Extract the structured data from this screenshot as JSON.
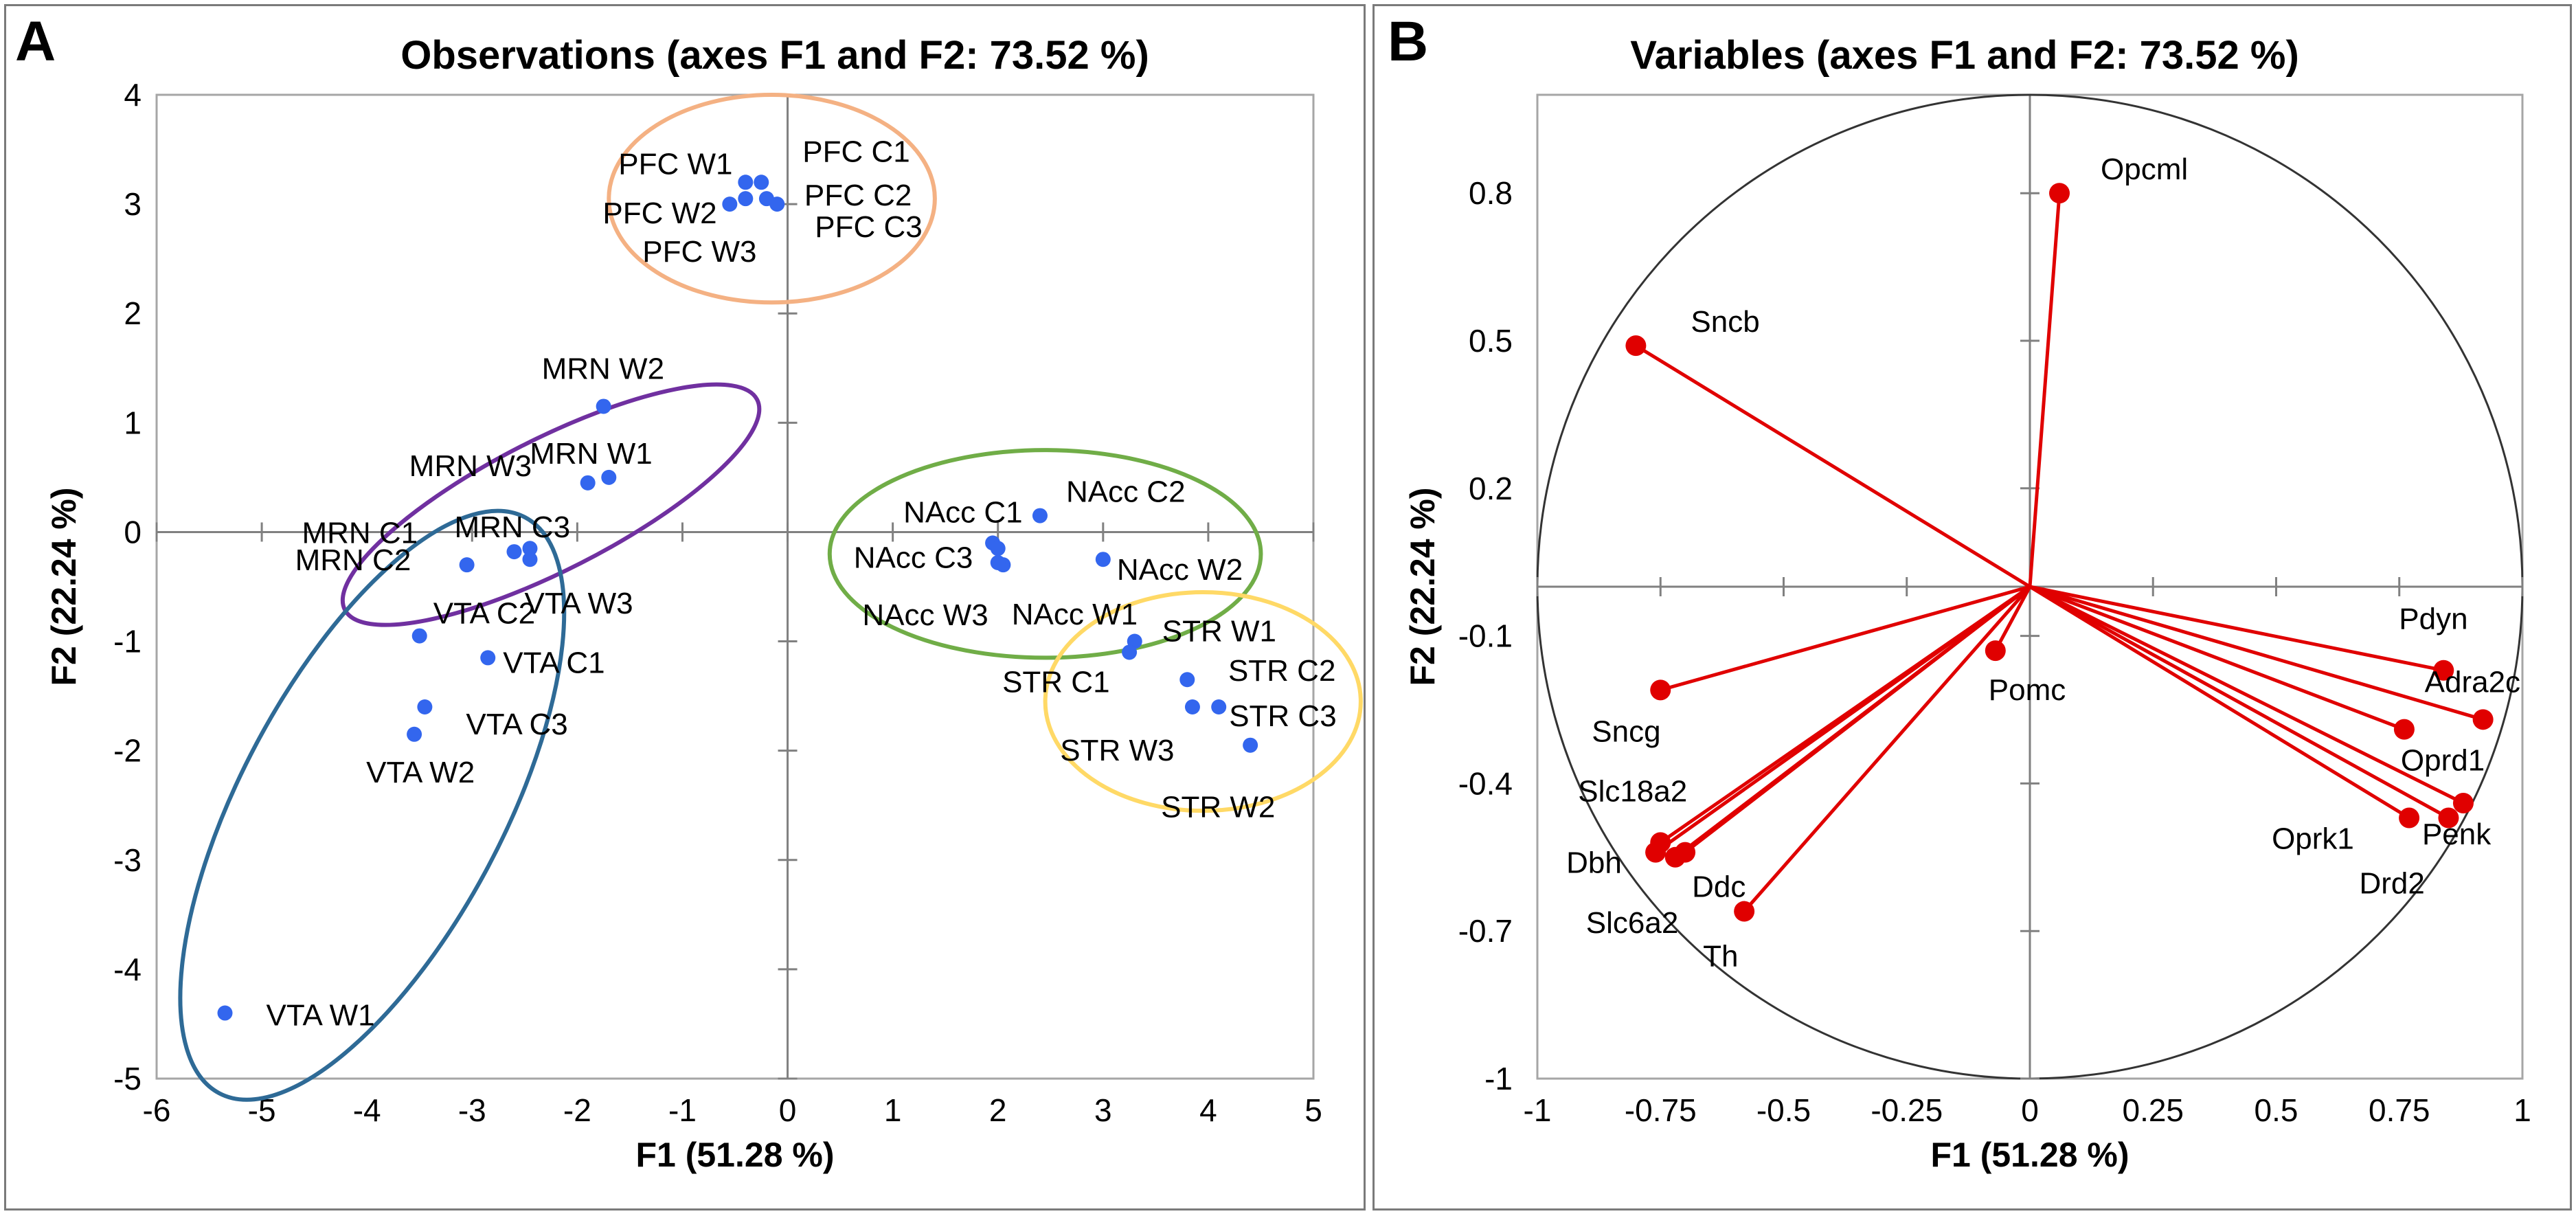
{
  "panels": [
    {
      "letter": "A",
      "title": "Observations (axes F1 and F2: 73.52 %)",
      "xlabel": "F1 (51.28 %)",
      "ylabel": "F2 (22.24 %)"
    },
    {
      "letter": "B",
      "title": "Variables (axes F1 and F2: 73.52 %)",
      "xlabel": "F1 (51.28 %)",
      "ylabel": "F2 (22.24 %)"
    }
  ],
  "chart_data": [
    {
      "type": "scatter",
      "title": "Observations (axes F1 and F2: 73.52 %)",
      "xlabel": "F1 (51.28 %)",
      "ylabel": "F2 (22.24 %)",
      "xlim": [
        -6,
        5
      ],
      "ylim": [
        -5,
        4
      ],
      "xticks": [
        "-6",
        "-5",
        "-4",
        "-3",
        "-2",
        "-1",
        "0",
        "1",
        "2",
        "3",
        "4",
        "5"
      ],
      "yticks": [
        "-5",
        "-4",
        "-3",
        "-2",
        "-1",
        "0",
        "1",
        "2",
        "3",
        "4"
      ],
      "point_color": "#3366ee",
      "points": [
        {
          "label": "PFC W1",
          "x": -0.4,
          "y": 3.2
        },
        {
          "label": "PFC W2",
          "x": -0.55,
          "y": 3.0
        },
        {
          "label": "PFC W3",
          "x": -0.4,
          "y": 3.05
        },
        {
          "label": "PFC C1",
          "x": -0.25,
          "y": 3.2
        },
        {
          "label": "PFC C2",
          "x": -0.2,
          "y": 3.05
        },
        {
          "label": "PFC C3",
          "x": -0.1,
          "y": 3.0
        },
        {
          "label": "MRN W2",
          "x": -1.75,
          "y": 1.15
        },
        {
          "label": "MRN W1",
          "x": -1.7,
          "y": 0.5
        },
        {
          "label": "MRN W3",
          "x": -1.9,
          "y": 0.45
        },
        {
          "label": "MRN C1",
          "x": -2.45,
          "y": -0.15
        },
        {
          "label": "MRN C3",
          "x": -2.45,
          "y": -0.25
        },
        {
          "label": "MRN C2",
          "x": -3.05,
          "y": -0.3
        },
        {
          "label": "VTA W3",
          "x": -2.6,
          "y": -0.18
        },
        {
          "label": "VTA C2",
          "x": -3.5,
          "y": -0.95
        },
        {
          "label": "VTA C1",
          "x": -2.85,
          "y": -1.15
        },
        {
          "label": "VTA C3",
          "x": -3.45,
          "y": -1.6
        },
        {
          "label": "VTA W2",
          "x": -3.55,
          "y": -1.85
        },
        {
          "label": "VTA W1",
          "x": -5.35,
          "y": -4.4
        },
        {
          "label": "NAcc C1",
          "x": 1.95,
          "y": -0.1
        },
        {
          "label": "NAcc C3",
          "x": 2.0,
          "y": -0.15
        },
        {
          "label": "NAcc W3",
          "x": 2.05,
          "y": -0.3
        },
        {
          "label": "NAcc C2",
          "x": 2.4,
          "y": 0.15
        },
        {
          "label": "NAcc W2",
          "x": 3.0,
          "y": -0.25
        },
        {
          "label": "NAcc W1",
          "x": 2.0,
          "y": -0.28
        },
        {
          "label": "STR W1",
          "x": 3.3,
          "y": -1.0
        },
        {
          "label": "STR C1",
          "x": 3.25,
          "y": -1.1
        },
        {
          "label": "STR W3",
          "x": 3.8,
          "y": -1.35
        },
        {
          "label": "STR C2",
          "x": 3.85,
          "y": -1.6
        },
        {
          "label": "STR C3",
          "x": 4.1,
          "y": -1.6
        },
        {
          "label": "STR W2",
          "x": 4.4,
          "y": -1.95
        }
      ],
      "groups": [
        {
          "name": "PFC",
          "color": "#f4b183"
        },
        {
          "name": "MRN",
          "color": "#7030a0"
        },
        {
          "name": "VTA",
          "color": "#2e6a96"
        },
        {
          "name": "NAcc",
          "color": "#70ad47"
        },
        {
          "name": "STR",
          "color": "#ffd966"
        }
      ]
    },
    {
      "type": "scatter",
      "title": "Variables (axes F1 and F2: 73.52 %)",
      "xlabel": "F1 (51.28 %)",
      "ylabel": "F2 (22.24 %)",
      "xlim": [
        -1,
        1
      ],
      "ylim": [
        -1,
        1
      ],
      "xticks": [
        "-1",
        "-0.75",
        "-0.5",
        "-0.25",
        "0",
        "0.25",
        "0.5",
        "0.75",
        "1"
      ],
      "yticks": [
        "-1",
        "-0.7",
        "-0.4",
        "-0.1",
        "0.2",
        "0.5",
        "0.8"
      ],
      "vector_color": "#e00000",
      "variables": [
        {
          "label": "Opcml",
          "x": 0.06,
          "y": 0.8
        },
        {
          "label": "Sncb",
          "x": -0.8,
          "y": 0.49
        },
        {
          "label": "Pomc",
          "x": -0.07,
          "y": -0.13
        },
        {
          "label": "Sncg",
          "x": -0.75,
          "y": -0.21
        },
        {
          "label": "Pdyn",
          "x": 0.84,
          "y": -0.17
        },
        {
          "label": "Adra2c",
          "x": 0.92,
          "y": -0.27
        },
        {
          "label": "Oprd1",
          "x": 0.76,
          "y": -0.29
        },
        {
          "label": "Penk",
          "x": 0.88,
          "y": -0.44
        },
        {
          "label": "Oprk1",
          "x": 0.77,
          "y": -0.47
        },
        {
          "label": "Drd2",
          "x": 0.85,
          "y": -0.47
        },
        {
          "label": "Slc18a2",
          "x": -0.75,
          "y": -0.52
        },
        {
          "label": "Dbh",
          "x": -0.76,
          "y": -0.54
        },
        {
          "label": "Slc6a2",
          "x": -0.72,
          "y": -0.55
        },
        {
          "label": "Ddc",
          "x": -0.7,
          "y": -0.54
        },
        {
          "label": "Th",
          "x": -0.58,
          "y": -0.66
        }
      ]
    }
  ]
}
